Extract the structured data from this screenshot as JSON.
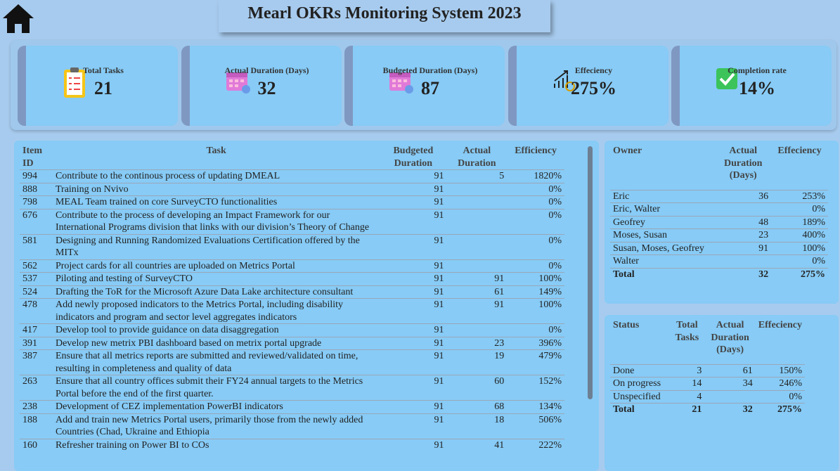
{
  "header": {
    "title": "Mearl OKRs Monitoring System 2023"
  },
  "kpis": [
    {
      "label": "Total Tasks",
      "value": "21"
    },
    {
      "label": "Actual Duration (Days)",
      "value": "32"
    },
    {
      "label": "Budgeted Duration (Days)",
      "value": "87"
    },
    {
      "label": "Effeciency",
      "value": "275%"
    },
    {
      "label": "Completion rate",
      "value": "14%"
    }
  ],
  "tasks": {
    "columns": [
      "Item ID",
      "Task",
      "Budgeted Duration",
      "Actual Duration",
      "Efficiency"
    ],
    "rows": [
      {
        "id": "994",
        "task": "Contribute to the continous process of updating DMEAL",
        "budgeted": "91",
        "actual": "5",
        "efficiency": "1820%"
      },
      {
        "id": "888",
        "task": "Training on Nvivo",
        "budgeted": "91",
        "efficiency": "0%"
      },
      {
        "id": "798",
        "task": "MEAL Team trained on core SurveyCTO functionalities",
        "budgeted": "91",
        "efficiency": "0%"
      },
      {
        "id": "676",
        "task": "Contribute to the process of developing an Impact Framework for our International Programs division that links with our division’s Theory of Change",
        "budgeted": "91",
        "efficiency": "0%"
      },
      {
        "id": "581",
        "task": "Designing and Running Randomized Evaluations Certification offered by the MITx",
        "budgeted": "91",
        "efficiency": "0%"
      },
      {
        "id": "562",
        "task": "Project cards for all countries are uploaded on Metrics Portal",
        "budgeted": "91",
        "efficiency": "0%"
      },
      {
        "id": "537",
        "task": "Piloting and testing of SurveyCTO",
        "budgeted": "91",
        "actual": "91",
        "efficiency": "100%"
      },
      {
        "id": "524",
        "task": "Drafting the ToR for the Microsoft Azure Data Lake architecture consultant",
        "budgeted": "91",
        "actual": "61",
        "efficiency": "149%"
      },
      {
        "id": "478",
        "task": "Add newly proposed indicators to the Metrics Portal, including disability indicators and program and sector level aggregates indicators",
        "budgeted": "91",
        "actual": "91",
        "efficiency": "100%"
      },
      {
        "id": "417",
        "task": "Develop tool to provide guidance on data disaggregation",
        "budgeted": "91",
        "efficiency": "0%"
      },
      {
        "id": "391",
        "task": "Develop new metrix PBI dashboard based on metrix portal upgrade",
        "budgeted": "91",
        "actual": "23",
        "efficiency": "396%"
      },
      {
        "id": "387",
        "task": "Ensure that all metrics reports are submitted and reviewed/validated on time, resulting in completeness and quality of data",
        "budgeted": "91",
        "actual": "19",
        "efficiency": "479%"
      },
      {
        "id": "263",
        "task": "Ensure that all country offices submit their FY24 annual targets to the Metrics Portal before the end of the first quarter.",
        "budgeted": "91",
        "actual": "60",
        "efficiency": "152%"
      },
      {
        "id": "238",
        "task": "Development of CEZ implementation PowerBI indicators",
        "budgeted": "91",
        "actual": "68",
        "efficiency": "134%"
      },
      {
        "id": "188",
        "task": "Add and train new Metrics Portal users, primarily those from the newly added Countries (Chad, Ukraine and Ethiopia",
        "budgeted": "91",
        "actual": "18",
        "efficiency": "506%"
      },
      {
        "id": "160",
        "task": "Refresher training on Power BI to COs",
        "budgeted": "91",
        "actual": "41",
        "efficiency": "222%"
      }
    ]
  },
  "owners": {
    "columns": [
      "Owner",
      "Actual Duration (Days)",
      "Effeciency"
    ],
    "rows": [
      {
        "owner": "Eric",
        "actual": "36",
        "efficiency": "253%"
      },
      {
        "owner": "Eric, Walter",
        "efficiency": "0%"
      },
      {
        "owner": "Geofrey",
        "actual": "48",
        "efficiency": "189%"
      },
      {
        "owner": "Moses, Susan",
        "actual": "23",
        "efficiency": "400%"
      },
      {
        "owner": "Susan, Moses, Geofrey",
        "actual": "91",
        "efficiency": "100%"
      },
      {
        "owner": "Walter",
        "efficiency": "0%"
      }
    ],
    "total": {
      "owner": "Total",
      "actual": "32",
      "efficiency": "275%"
    }
  },
  "status": {
    "columns": [
      "Status",
      "Total Tasks",
      "Actual Duration (Days)",
      "Effeciency"
    ],
    "rows": [
      {
        "status": "Done",
        "tasks": "3",
        "actual": "61",
        "efficiency": "150%"
      },
      {
        "status": "On progress",
        "tasks": "14",
        "actual": "34",
        "efficiency": "246%"
      },
      {
        "status": "Unspecified",
        "tasks": "4",
        "efficiency": "0%"
      }
    ],
    "total": {
      "status": "Total",
      "tasks": "21",
      "actual": "32",
      "efficiency": "275%"
    }
  }
}
